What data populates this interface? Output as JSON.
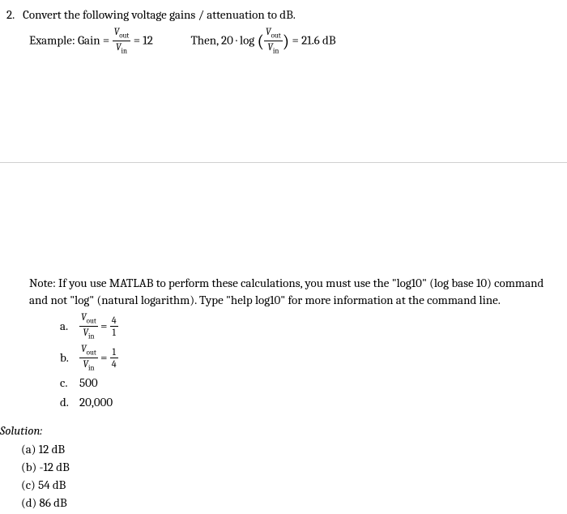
{
  "problem": {
    "number": "2.",
    "prompt": "Convert the following voltage gains / attenuation to dB.",
    "example_label": "Example:  Gain =",
    "example_ratio_num": "V",
    "example_ratio_num_sub": "out",
    "example_ratio_den": "V",
    "example_ratio_den_sub": "in",
    "example_equals": " = 12",
    "example_then": "Then, 20 · log",
    "example_result": " = 21.6 dB"
  },
  "note": {
    "text": "Note:  If you use MATLAB to perform these calculations, you must use the \"log10\" (log base 10) command and not \"log\" (natural logarithm).  Type \"help log10\" for more information at the command line."
  },
  "parts": {
    "a": {
      "label": "a.",
      "num_top": "4",
      "num_bot": "1"
    },
    "b": {
      "label": "b.",
      "num_top": "1",
      "num_bot": "4"
    },
    "c": {
      "label": "c.",
      "val": "500"
    },
    "d": {
      "label": "d.",
      "val": "20,000"
    }
  },
  "solution": {
    "title": "Solution:",
    "a": "(a) 12 dB",
    "b": "(b) -12 dB",
    "c": "(c) 54 dB",
    "d": "(d) 86 dB"
  }
}
